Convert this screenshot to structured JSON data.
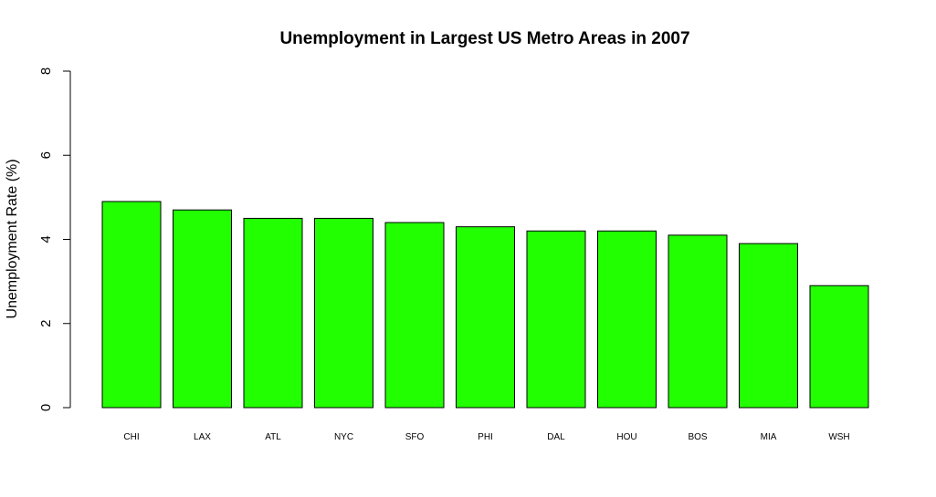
{
  "chart_data": {
    "type": "bar",
    "title": "Unemployment in Largest US Metro Areas in 2007",
    "xlabel": "",
    "ylabel": "Unemployment Rate (%)",
    "categories": [
      "CHI",
      "LAX",
      "ATL",
      "NYC",
      "SFO",
      "PHI",
      "DAL",
      "HOU",
      "BOS",
      "MIA",
      "WSH"
    ],
    "values": [
      4.9,
      4.7,
      4.5,
      4.5,
      4.4,
      4.3,
      4.2,
      4.2,
      4.1,
      3.9,
      2.9
    ],
    "ylim": [
      0,
      8
    ],
    "yticks": [
      0,
      2,
      4,
      6,
      8
    ],
    "grid": false,
    "colors": {
      "bar_fill": "#22ff00",
      "bar_stroke": "#000000",
      "axis": "#000000"
    }
  }
}
